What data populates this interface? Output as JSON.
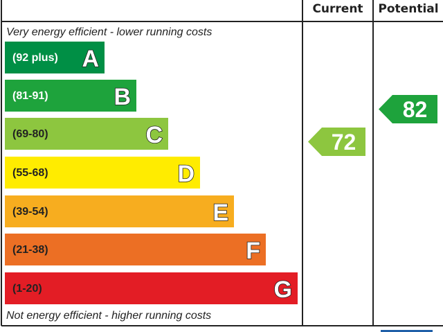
{
  "chart_data": {
    "type": "bar",
    "headers": {
      "current": "Current",
      "potential": "Potential"
    },
    "top_caption": "Very energy efficient - lower running costs",
    "bottom_caption": "Not energy efficient - higher running costs",
    "bands": [
      {
        "letter": "A",
        "range": "(92 plus)",
        "color": "#008f45",
        "text_color": "#ffffff"
      },
      {
        "letter": "B",
        "range": "(81-91)",
        "color": "#1ea33c",
        "text_color": "#ffffff"
      },
      {
        "letter": "C",
        "range": "(69-80)",
        "color": "#8dc63f",
        "text_color": "#222222"
      },
      {
        "letter": "D",
        "range": "(55-68)",
        "color": "#ffec00",
        "text_color": "#222222"
      },
      {
        "letter": "E",
        "range": "(39-54)",
        "color": "#f7ad1f",
        "text_color": "#222222"
      },
      {
        "letter": "F",
        "range": "(21-38)",
        "color": "#ec6f24",
        "text_color": "#222222"
      },
      {
        "letter": "G",
        "range": "(1-20)",
        "color": "#e31d25",
        "text_color": "#222222"
      }
    ],
    "current": {
      "value": "72",
      "band": "C",
      "color": "#8dc63f"
    },
    "potential": {
      "value": "82",
      "band": "B",
      "color": "#1ea33c"
    }
  }
}
